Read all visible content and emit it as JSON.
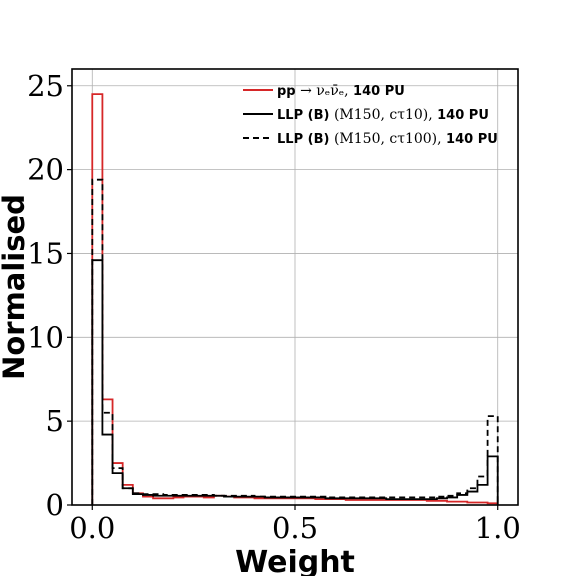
{
  "chart_data": {
    "type": "histogram-step",
    "xlabel": "Weight",
    "ylabel": "Normalised",
    "xlim": [
      -0.05,
      1.05
    ],
    "ylim": [
      0,
      26
    ],
    "xticks": [
      0.0,
      0.5,
      1.0
    ],
    "xtick_labels": [
      "0.0",
      "0.5",
      "1.0"
    ],
    "yticks": [
      0,
      5,
      10,
      15,
      20,
      25
    ],
    "ytick_labels": [
      "0",
      "5",
      "10",
      "15",
      "20",
      "25"
    ],
    "grid": true,
    "legend_position": "top-right",
    "bin_edges": [
      0.0,
      0.025,
      0.05,
      0.075,
      0.1,
      0.125,
      0.15,
      0.175,
      0.2,
      0.225,
      0.25,
      0.275,
      0.3,
      0.325,
      0.35,
      0.375,
      0.4,
      0.425,
      0.45,
      0.475,
      0.5,
      0.525,
      0.55,
      0.575,
      0.6,
      0.625,
      0.65,
      0.675,
      0.7,
      0.725,
      0.75,
      0.775,
      0.8,
      0.825,
      0.85,
      0.875,
      0.9,
      0.925,
      0.95,
      0.975,
      1.0
    ],
    "series": [
      {
        "name": "pp → ν_e ν̄_e, 140 PU",
        "color": "#d62728",
        "style": "solid",
        "values": [
          24.5,
          6.3,
          2.5,
          1.2,
          0.7,
          0.5,
          0.4,
          0.4,
          0.45,
          0.5,
          0.5,
          0.45,
          0.55,
          0.5,
          0.45,
          0.45,
          0.4,
          0.4,
          0.4,
          0.4,
          0.4,
          0.4,
          0.35,
          0.35,
          0.35,
          0.3,
          0.3,
          0.3,
          0.3,
          0.3,
          0.3,
          0.3,
          0.3,
          0.25,
          0.25,
          0.2,
          0.2,
          0.15,
          0.15,
          0.1
        ]
      },
      {
        "name": "LLP (B) (M150, cτ10), 140 PU",
        "color": "#000000",
        "style": "solid",
        "values": [
          14.6,
          4.2,
          1.9,
          1.0,
          0.65,
          0.6,
          0.55,
          0.55,
          0.55,
          0.55,
          0.55,
          0.55,
          0.55,
          0.5,
          0.5,
          0.5,
          0.5,
          0.45,
          0.45,
          0.45,
          0.45,
          0.45,
          0.45,
          0.4,
          0.4,
          0.4,
          0.4,
          0.4,
          0.4,
          0.35,
          0.35,
          0.35,
          0.35,
          0.35,
          0.4,
          0.45,
          0.6,
          0.8,
          1.2,
          2.9
        ]
      },
      {
        "name": "LLP (B) (M150, cτ100), 140 PU",
        "color": "#000000",
        "style": "dashed",
        "values": [
          19.4,
          5.5,
          2.2,
          1.0,
          0.7,
          0.65,
          0.65,
          0.6,
          0.6,
          0.6,
          0.6,
          0.6,
          0.55,
          0.55,
          0.55,
          0.55,
          0.5,
          0.5,
          0.5,
          0.5,
          0.5,
          0.5,
          0.5,
          0.45,
          0.45,
          0.45,
          0.45,
          0.45,
          0.45,
          0.45,
          0.45,
          0.45,
          0.45,
          0.45,
          0.5,
          0.55,
          0.7,
          1.0,
          1.7,
          5.3
        ]
      }
    ],
    "legend": [
      {
        "prefix": "pp",
        "math": " → νₑν̄ₑ, ",
        "suffix": "140 PU"
      },
      {
        "prefix": "LLP (B) ",
        "math": "(M150, cτ10), ",
        "suffix": "140 PU"
      },
      {
        "prefix": "LLP (B) ",
        "math": "(M150, cτ100), ",
        "suffix": "140 PU"
      }
    ]
  }
}
